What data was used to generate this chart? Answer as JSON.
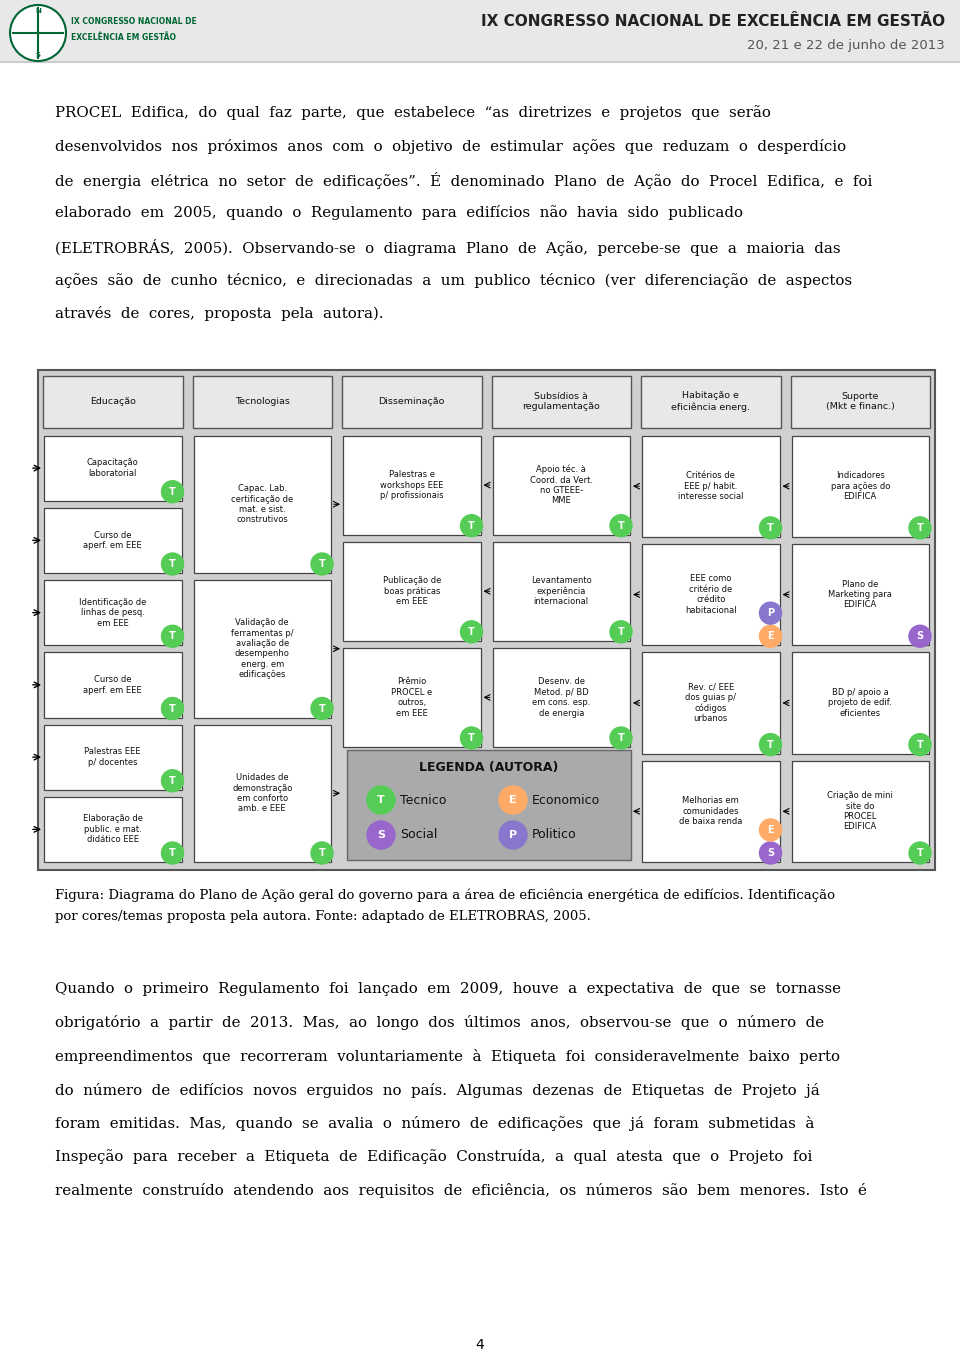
{
  "header_title": "IX CONGRESSO NACIONAL DE EXCELÊNCIA EM GESTÃO",
  "header_subtitle": "20, 21 e 22 de junho de 2013",
  "header_bg": "#e8e8e8",
  "page_bg": "#ffffff",
  "text_color": "#000000",
  "green_color": "#55cc55",
  "orange_color": "#ffaa66",
  "purple_color": "#9966cc",
  "blue_purple": "#8877cc",
  "legend_bg": "#aaaaaa",
  "col_headers": [
    "Educação",
    "Tecnologias",
    "Disseminação",
    "Subsídios à\nregulamentação",
    "Habitação e\neficiência energ.",
    "Suporte\n(Mkt e financ.)"
  ],
  "col_items": [
    [
      "Capacitação\nlaboratorial",
      "Curso de\naperf. em EEE",
      "Identificação de\nlinhas de pesq.\nem EEE",
      "Curso de\naperf. em EEE",
      "Palestras EEE\np/ docentes",
      "Elaboração de\npublic. e mat.\ndidático EEE"
    ],
    [
      "Capac. Lab.\ncertificação de\nmat. e sist.\nconstrutivos",
      "Validação de\nferramentas p/\navaliação de\ndesempenho\nenerg. em\nedificações",
      "Unidades de\ndemonstração\nem conforto\namb. e EEE"
    ],
    [
      "Palestras e\nworkshops EEE\np/ profissionais",
      "Publicação de\nboas práticas\nem EEE",
      "Prêmio\nPROCEL e\noutros,\nem EEE"
    ],
    [
      "Apoio téc. à\nCoord. da Vert.\nno GTEEE-\nMME",
      "Levantamento\nexperiência\ninternacional",
      "Desenv. de\nMetod. p/ BD\nem cons. esp.\nde energia"
    ],
    [
      "Critérios de\nEEE p/ habit.\ninteresse social",
      "EEE como\ncritério de\ncrédito\nhabitacional",
      "Rev. c/ EEE\ndos guias p/\ncódigos\nurbanos",
      "Melhorias em\ncomunidades\nde baixa renda"
    ],
    [
      "Indicadores\npara ações do\nEDIFICA",
      "Plano de\nMarketing para\nEDIFICA",
      "BD p/ apoio a\nprojeto de edif.\neficientes",
      "Criação de mini\nsite do\nPROCEL\nEDIFICA"
    ]
  ],
  "item_badges": [
    [
      "T",
      "T",
      "T",
      "T",
      "T",
      "T"
    ],
    [
      "T",
      "T",
      "T"
    ],
    [
      "T",
      "T",
      "T"
    ],
    [
      "T",
      "T",
      "T"
    ],
    [
      "T",
      "EP",
      "T",
      "SE"
    ],
    [
      "T",
      "S",
      "T",
      "T"
    ]
  ],
  "para1_lines": [
    "PROCEL  Edifica,  do  qual  faz  parte,  que  estabelece  “as  diretrizes  e  projetos  que  serão",
    "desenvolvidos  nos  próximos  anos  com  o  objetivo  de  estimular  ações  que  reduzam  o  desperdício",
    "de  energia  elétrica  no  setor  de  edificações”.  É  denominado  Plano  de  Ação  do  Procel  Edifica,  e  foi",
    "elaborado  em  2005,  quando  o  Regulamento  para  edifícios  não  havia  sido  publicado",
    "(ELETROBRÁS,  2005).  Observando-se  o  diagrama  Plano  de  Ação,  percebe-se  que  a  maioria  das",
    "ações  são  de  cunho  técnico,  e  direcionadas  a  um  publico  técnico  (ver  diferenciação  de  aspectos",
    "através  de  cores,  proposta  pela  autora)."
  ],
  "caption_lines": [
    "Figura: Diagrama do Plano de Ação geral do governo para a área de eficiência energética de edifícios. Identificação",
    "por cores/temas proposta pela autora. Fonte: adaptado de ELETROBRAS, 2005."
  ],
  "para2_lines": [
    "Quando  o  primeiro  Regulamento  foi  lançado  em  2009,  houve  a  expectativa  de  que  se  tornasse",
    "obrigatório  a  partir  de  2013.  Mas,  ao  longo  dos  últimos  anos,  observou-se  que  o  número  de",
    "empreendimentos  que  recorreram  voluntariamente  à  Etiqueta  foi  consideravelmente  baixo  perto",
    "do  número  de  edifícios  novos  erguidos  no  país.  Algumas  dezenas  de  Etiquetas  de  Projeto  já",
    "foram  emitidas.  Mas,  quando  se  avalia  o  número  de  edificações  que  já  foram  submetidas  à",
    "Inspeção  para  receber  a  Etiqueta  de  Edificação  Construída,  a  qual  atesta  que  o  Projeto  foi",
    "realmente  construído  atendendo  aos  requisitos  de  eficiência,  os  números  são  bem  menores.  Isto  é"
  ],
  "page_number": "4"
}
